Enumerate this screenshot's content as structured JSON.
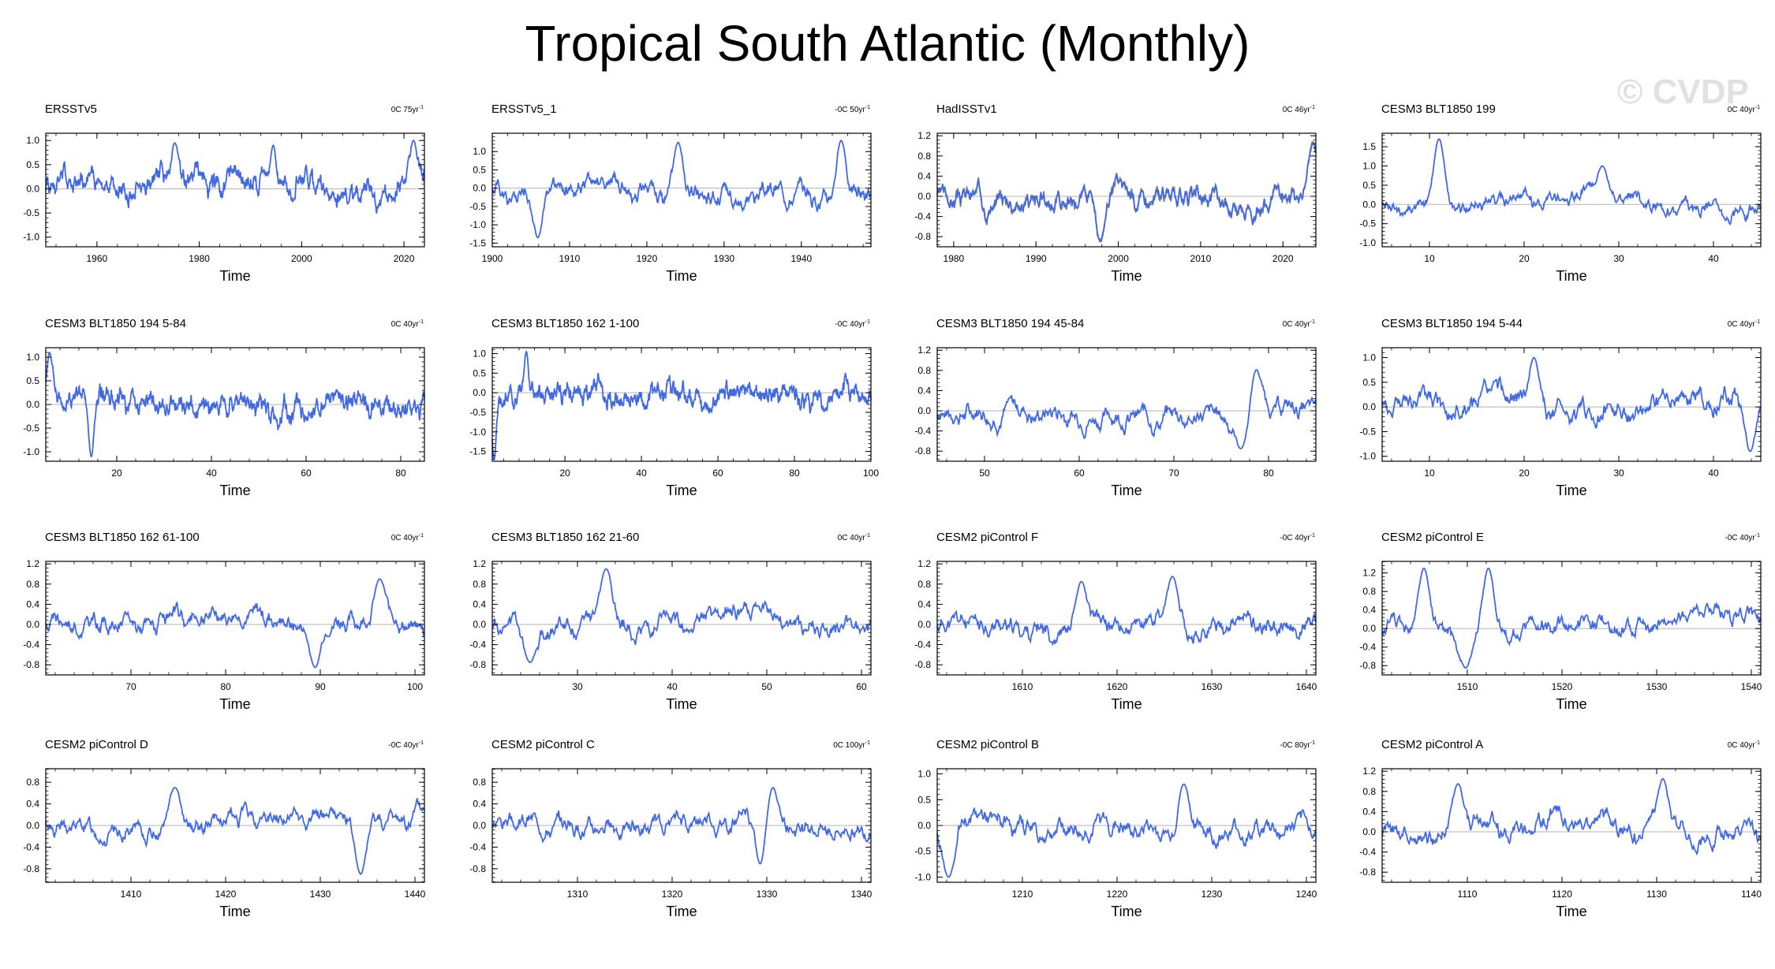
{
  "title": "Tropical South Atlantic (Monthly)",
  "watermark": "© CVDP",
  "colors": {
    "line": "#4169e1",
    "obs_line": "#808080",
    "zero_line": "#b3b3b3",
    "axis": "#000000"
  },
  "chart_data": [
    {
      "type": "line",
      "title": "ERSSTv5",
      "trend": "0C 75yr",
      "trend_sup": "-1",
      "xlabel": "Time",
      "xlim": [
        1950,
        2024
      ],
      "ylim": [
        -1.2,
        1.15
      ],
      "xticks": [
        1960,
        1980,
        2000,
        2020
      ],
      "yticks": [
        -1.0,
        -0.5,
        0.0,
        0.5,
        1.0
      ],
      "ytick_labels": [
        "-1.0",
        "-0.5",
        "0.0",
        "0.5",
        "1.0"
      ],
      "series_seed": 1,
      "n": 888,
      "amp": 0.4,
      "peaks": [
        [
          0.6,
          0.9
        ],
        [
          0.34,
          0.95
        ],
        [
          0.97,
          1.0
        ]
      ]
    },
    {
      "type": "line",
      "title": "ERSSTv5_1",
      "trend": "-0C 50yr",
      "trend_sup": "-1",
      "xlabel": "Time",
      "xlim": [
        1900,
        1949
      ],
      "ylim": [
        -1.6,
        1.5
      ],
      "xticks": [
        1900,
        1910,
        1920,
        1930,
        1940
      ],
      "yticks": [
        -1.5,
        -1.0,
        -0.5,
        0.0,
        0.5,
        1.0
      ],
      "ytick_labels": [
        "-1.5",
        "-1.0",
        "-0.5",
        "0.0",
        "0.5",
        "1.0"
      ],
      "series_seed": 2,
      "n": 600,
      "amp": 0.45,
      "peaks": [
        [
          0.12,
          -1.35
        ],
        [
          0.49,
          1.25
        ],
        [
          0.92,
          1.3
        ]
      ]
    },
    {
      "type": "line",
      "title": "HadISSTv1",
      "trend": "0C 46yr",
      "trend_sup": "-1",
      "xlabel": "Time",
      "xlim": [
        1978,
        2024
      ],
      "ylim": [
        -1.0,
        1.25
      ],
      "xticks": [
        1980,
        1990,
        2000,
        2010,
        2020
      ],
      "yticks": [
        -0.8,
        -0.4,
        0.0,
        0.4,
        0.8,
        1.2
      ],
      "ytick_labels": [
        "-0.8",
        "-0.4",
        "0.0",
        "0.4",
        "0.8",
        "1.2"
      ],
      "series_seed": 3,
      "n": 552,
      "amp": 0.35,
      "obs_overlay": true,
      "peaks": [
        [
          0.43,
          -0.9
        ],
        [
          0.99,
          1.05
        ]
      ]
    },
    {
      "type": "line",
      "title": "CESM3 BLT1850 199",
      "trend": "0C 40yr",
      "trend_sup": "-1",
      "xlabel": "Time",
      "xlim": [
        5,
        45
      ],
      "ylim": [
        -1.1,
        1.85
      ],
      "xticks": [
        10,
        20,
        30,
        40
      ],
      "yticks": [
        -1.0,
        -0.5,
        0.0,
        0.5,
        1.0,
        1.5
      ],
      "ytick_labels": [
        "-1.0",
        "-0.5",
        "0.0",
        "0.5",
        "1.0",
        "1.5"
      ],
      "series_seed": 4,
      "n": 480,
      "amp": 0.35,
      "peaks": [
        [
          0.15,
          1.7
        ],
        [
          0.58,
          1.0
        ]
      ]
    },
    {
      "type": "line",
      "title": "CESM3 BLT1850 194 5-84",
      "trend": "0C 40yr",
      "trend_sup": "-1",
      "xlabel": "Time",
      "xlim": [
        5,
        85
      ],
      "ylim": [
        -1.2,
        1.2
      ],
      "xticks": [
        20,
        40,
        60,
        80
      ],
      "yticks": [
        -1.0,
        -0.5,
        0.0,
        0.5,
        1.0
      ],
      "ytick_labels": [
        "-1.0",
        "-0.5",
        "0.0",
        "0.5",
        "1.0"
      ],
      "series_seed": 5,
      "n": 960,
      "amp": 0.4,
      "peaks": [
        [
          0.01,
          1.1
        ],
        [
          0.12,
          -1.1
        ]
      ]
    },
    {
      "type": "line",
      "title": "CESM3 BLT1850 162 1-100",
      "trend": "-0C 40yr",
      "trend_sup": "-1",
      "xlabel": "Time",
      "xlim": [
        1,
        100
      ],
      "ylim": [
        -1.75,
        1.15
      ],
      "xticks": [
        20,
        40,
        60,
        80,
        100
      ],
      "yticks": [
        -1.5,
        -1.0,
        -0.5,
        0.0,
        0.5,
        1.0
      ],
      "ytick_labels": [
        "-1.5",
        "-1.0",
        "-0.5",
        "0.0",
        "0.5",
        "1.0"
      ],
      "series_seed": 6,
      "n": 1200,
      "amp": 0.4,
      "peaks": [
        [
          0.005,
          -1.7
        ],
        [
          0.09,
          1.05
        ]
      ]
    },
    {
      "type": "line",
      "title": "CESM3 BLT1850 194 45-84",
      "trend": "0C 40yr",
      "trend_sup": "-1",
      "xlabel": "Time",
      "xlim": [
        45,
        85
      ],
      "ylim": [
        -1.0,
        1.25
      ],
      "xticks": [
        50,
        60,
        70,
        80
      ],
      "yticks": [
        -0.8,
        -0.4,
        0.0,
        0.4,
        0.8,
        1.2
      ],
      "ytick_labels": [
        "-0.8",
        "-0.4",
        "0.0",
        "0.4",
        "0.8",
        "1.2"
      ],
      "series_seed": 7,
      "n": 480,
      "amp": 0.35,
      "peaks": [
        [
          0.84,
          0.85
        ],
        [
          0.8,
          -0.75
        ]
      ]
    },
    {
      "type": "line",
      "title": "CESM3 BLT1850 194 5-44",
      "trend": "0C 40yr",
      "trend_sup": "-1",
      "xlabel": "Time",
      "xlim": [
        5,
        45
      ],
      "ylim": [
        -1.1,
        1.2
      ],
      "xticks": [
        10,
        20,
        30,
        40
      ],
      "yticks": [
        -1.0,
        -0.5,
        0.0,
        0.5,
        1.0
      ],
      "ytick_labels": [
        "-1.0",
        "-0.5",
        "0.0",
        "0.5",
        "1.0"
      ],
      "series_seed": 8,
      "n": 480,
      "amp": 0.4,
      "peaks": [
        [
          0.4,
          1.0
        ],
        [
          0.97,
          -0.9
        ]
      ]
    },
    {
      "type": "line",
      "title": "CESM3 BLT1850 162 61-100",
      "trend": "0C 40yr",
      "trend_sup": "-1",
      "xlabel": "Time",
      "xlim": [
        61,
        101
      ],
      "ylim": [
        -1.0,
        1.25
      ],
      "xticks": [
        70,
        80,
        90,
        100
      ],
      "yticks": [
        -0.8,
        -0.4,
        0.0,
        0.4,
        0.8,
        1.2
      ],
      "ytick_labels": [
        "-0.8",
        "-0.4",
        "0.0",
        "0.4",
        "0.8",
        "1.2"
      ],
      "series_seed": 9,
      "n": 480,
      "amp": 0.35,
      "peaks": [
        [
          0.71,
          -0.85
        ],
        [
          0.88,
          0.9
        ]
      ]
    },
    {
      "type": "line",
      "title": "CESM3 BLT1850 162 21-60",
      "trend": "0C 40yr",
      "trend_sup": "-1",
      "xlabel": "Time",
      "xlim": [
        21,
        61
      ],
      "ylim": [
        -1.0,
        1.25
      ],
      "xticks": [
        30,
        40,
        50,
        60
      ],
      "yticks": [
        -0.8,
        -0.4,
        0.0,
        0.4,
        0.8,
        1.2
      ],
      "ytick_labels": [
        "-0.8",
        "-0.4",
        "0.0",
        "0.4",
        "0.8",
        "1.2"
      ],
      "series_seed": 10,
      "n": 480,
      "amp": 0.35,
      "peaks": [
        [
          0.3,
          1.1
        ],
        [
          0.1,
          -0.75
        ]
      ]
    },
    {
      "type": "line",
      "title": "CESM2 piControl F",
      "trend": "-0C 40yr",
      "trend_sup": "-1",
      "xlabel": "Time",
      "xlim": [
        1601,
        1641
      ],
      "ylim": [
        -1.0,
        1.25
      ],
      "xticks": [
        1610,
        1620,
        1630,
        1640
      ],
      "yticks": [
        -0.8,
        -0.4,
        0.0,
        0.4,
        0.8,
        1.2
      ],
      "ytick_labels": [
        "-0.8",
        "-0.4",
        "0.0",
        "0.4",
        "0.8",
        "1.2"
      ],
      "series_seed": 11,
      "n": 480,
      "amp": 0.35,
      "peaks": [
        [
          0.38,
          0.85
        ],
        [
          0.62,
          0.95
        ]
      ]
    },
    {
      "type": "line",
      "title": "CESM2 piControl E",
      "trend": "-0C 40yr",
      "trend_sup": "-1",
      "xlabel": "Time",
      "xlim": [
        1501,
        1541
      ],
      "ylim": [
        -1.0,
        1.45
      ],
      "xticks": [
        1510,
        1520,
        1530,
        1540
      ],
      "yticks": [
        -0.8,
        -0.4,
        0.0,
        0.4,
        0.8,
        1.2
      ],
      "ytick_labels": [
        "-0.8",
        "-0.4",
        "0.0",
        "0.4",
        "0.8",
        "1.2"
      ],
      "series_seed": 12,
      "n": 480,
      "amp": 0.35,
      "peaks": [
        [
          0.11,
          1.3
        ],
        [
          0.28,
          1.3
        ],
        [
          0.22,
          -0.85
        ]
      ]
    },
    {
      "type": "line",
      "title": "CESM2 piControl D",
      "trend": "-0C 40yr",
      "trend_sup": "-1",
      "xlabel": "Time",
      "xlim": [
        1401,
        1441
      ],
      "ylim": [
        -1.05,
        1.05
      ],
      "xticks": [
        1410,
        1420,
        1430,
        1440
      ],
      "yticks": [
        -0.8,
        -0.4,
        0.0,
        0.4,
        0.8
      ],
      "ytick_labels": [
        "-0.8",
        "-0.4",
        "0.0",
        "0.4",
        "0.8"
      ],
      "series_seed": 13,
      "n": 480,
      "amp": 0.3,
      "peaks": [
        [
          0.83,
          -0.9
        ],
        [
          0.34,
          0.7
        ]
      ]
    },
    {
      "type": "line",
      "title": "CESM2 piControl C",
      "trend": "0C 100yr",
      "trend_sup": "-1",
      "xlabel": "Time",
      "xlim": [
        1301,
        1341
      ],
      "ylim": [
        -1.05,
        1.05
      ],
      "xticks": [
        1310,
        1320,
        1330,
        1340
      ],
      "yticks": [
        -0.8,
        -0.4,
        0.0,
        0.4,
        0.8
      ],
      "ytick_labels": [
        "-0.8",
        "-0.4",
        "0.0",
        "0.4",
        "0.8"
      ],
      "series_seed": 14,
      "n": 480,
      "amp": 0.3,
      "peaks": [
        [
          0.71,
          -0.85
        ],
        [
          0.74,
          0.7
        ]
      ]
    },
    {
      "type": "line",
      "title": "CESM2 piControl B",
      "trend": "-0C 80yr",
      "trend_sup": "-1",
      "xlabel": "Time",
      "xlim": [
        1201,
        1241
      ],
      "ylim": [
        -1.1,
        1.1
      ],
      "xticks": [
        1210,
        1220,
        1230,
        1240
      ],
      "yticks": [
        -1.0,
        -0.5,
        0.0,
        0.5,
        1.0
      ],
      "ytick_labels": [
        "-1.0",
        "-0.5",
        "0.0",
        "0.5",
        "1.0"
      ],
      "series_seed": 15,
      "n": 480,
      "amp": 0.35,
      "peaks": [
        [
          0.03,
          -1.0
        ],
        [
          0.65,
          0.8
        ]
      ]
    },
    {
      "type": "line",
      "title": "CESM2 piControl A",
      "trend": "0C 40yr",
      "trend_sup": "-1",
      "xlabel": "Time",
      "xlim": [
        1101,
        1141
      ],
      "ylim": [
        -1.0,
        1.25
      ],
      "xticks": [
        1110,
        1120,
        1130,
        1140
      ],
      "yticks": [
        -0.8,
        -0.4,
        0.0,
        0.4,
        0.8,
        1.2
      ],
      "ytick_labels": [
        "-0.8",
        "-0.4",
        "0.0",
        "0.4",
        "0.8",
        "1.2"
      ],
      "series_seed": 16,
      "n": 480,
      "amp": 0.35,
      "peaks": [
        [
          0.74,
          1.05
        ],
        [
          0.2,
          0.95
        ]
      ]
    }
  ]
}
